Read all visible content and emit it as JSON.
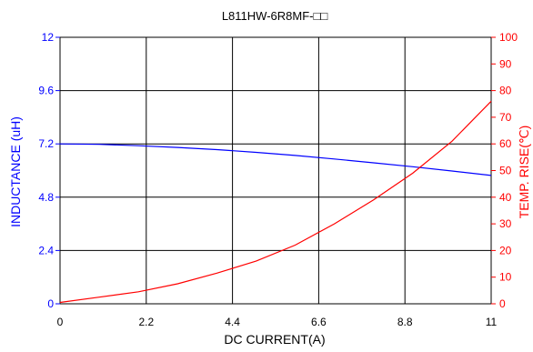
{
  "chart_data": {
    "type": "line",
    "title": "L811HW-6R8MF-□□",
    "xlabel": "DC CURRENT(A)",
    "ylabel_left": "INDUCTANCE (uH)",
    "ylabel_right": "TEMP. RISE(℃)",
    "xlim": [
      0,
      11
    ],
    "ylim_left": [
      0,
      12
    ],
    "ylim_right": [
      0,
      100
    ],
    "x_ticks": [
      "0",
      "2.2",
      "4.4",
      "6.6",
      "8.8",
      "11"
    ],
    "y_left_ticks": [
      "0",
      "2.4",
      "4.8",
      "7.2",
      "9.6",
      "12"
    ],
    "y_right_ticks": [
      "0",
      "10",
      "20",
      "30",
      "40",
      "50",
      "60",
      "70",
      "80",
      "90",
      "100"
    ],
    "grid": true,
    "series": [
      {
        "axis": "left",
        "color": "#0000ff",
        "x": [
          0,
          1,
          2,
          3,
          4,
          5,
          6,
          7,
          8,
          9,
          10,
          11
        ],
        "y": [
          7.2,
          7.18,
          7.12,
          7.04,
          6.94,
          6.82,
          6.68,
          6.52,
          6.35,
          6.17,
          5.98,
          5.78
        ]
      },
      {
        "axis": "right",
        "color": "#ff0000",
        "x": [
          0,
          1,
          2,
          3,
          4,
          5,
          6,
          7,
          8,
          9,
          10,
          11
        ],
        "y": [
          0.5,
          2.5,
          4.5,
          7.5,
          11.5,
          16,
          22,
          30,
          39,
          49,
          61,
          76
        ]
      }
    ]
  },
  "colors": {
    "left_axis": "#0000ff",
    "right_axis": "#ff0000",
    "grid": "#000000"
  }
}
